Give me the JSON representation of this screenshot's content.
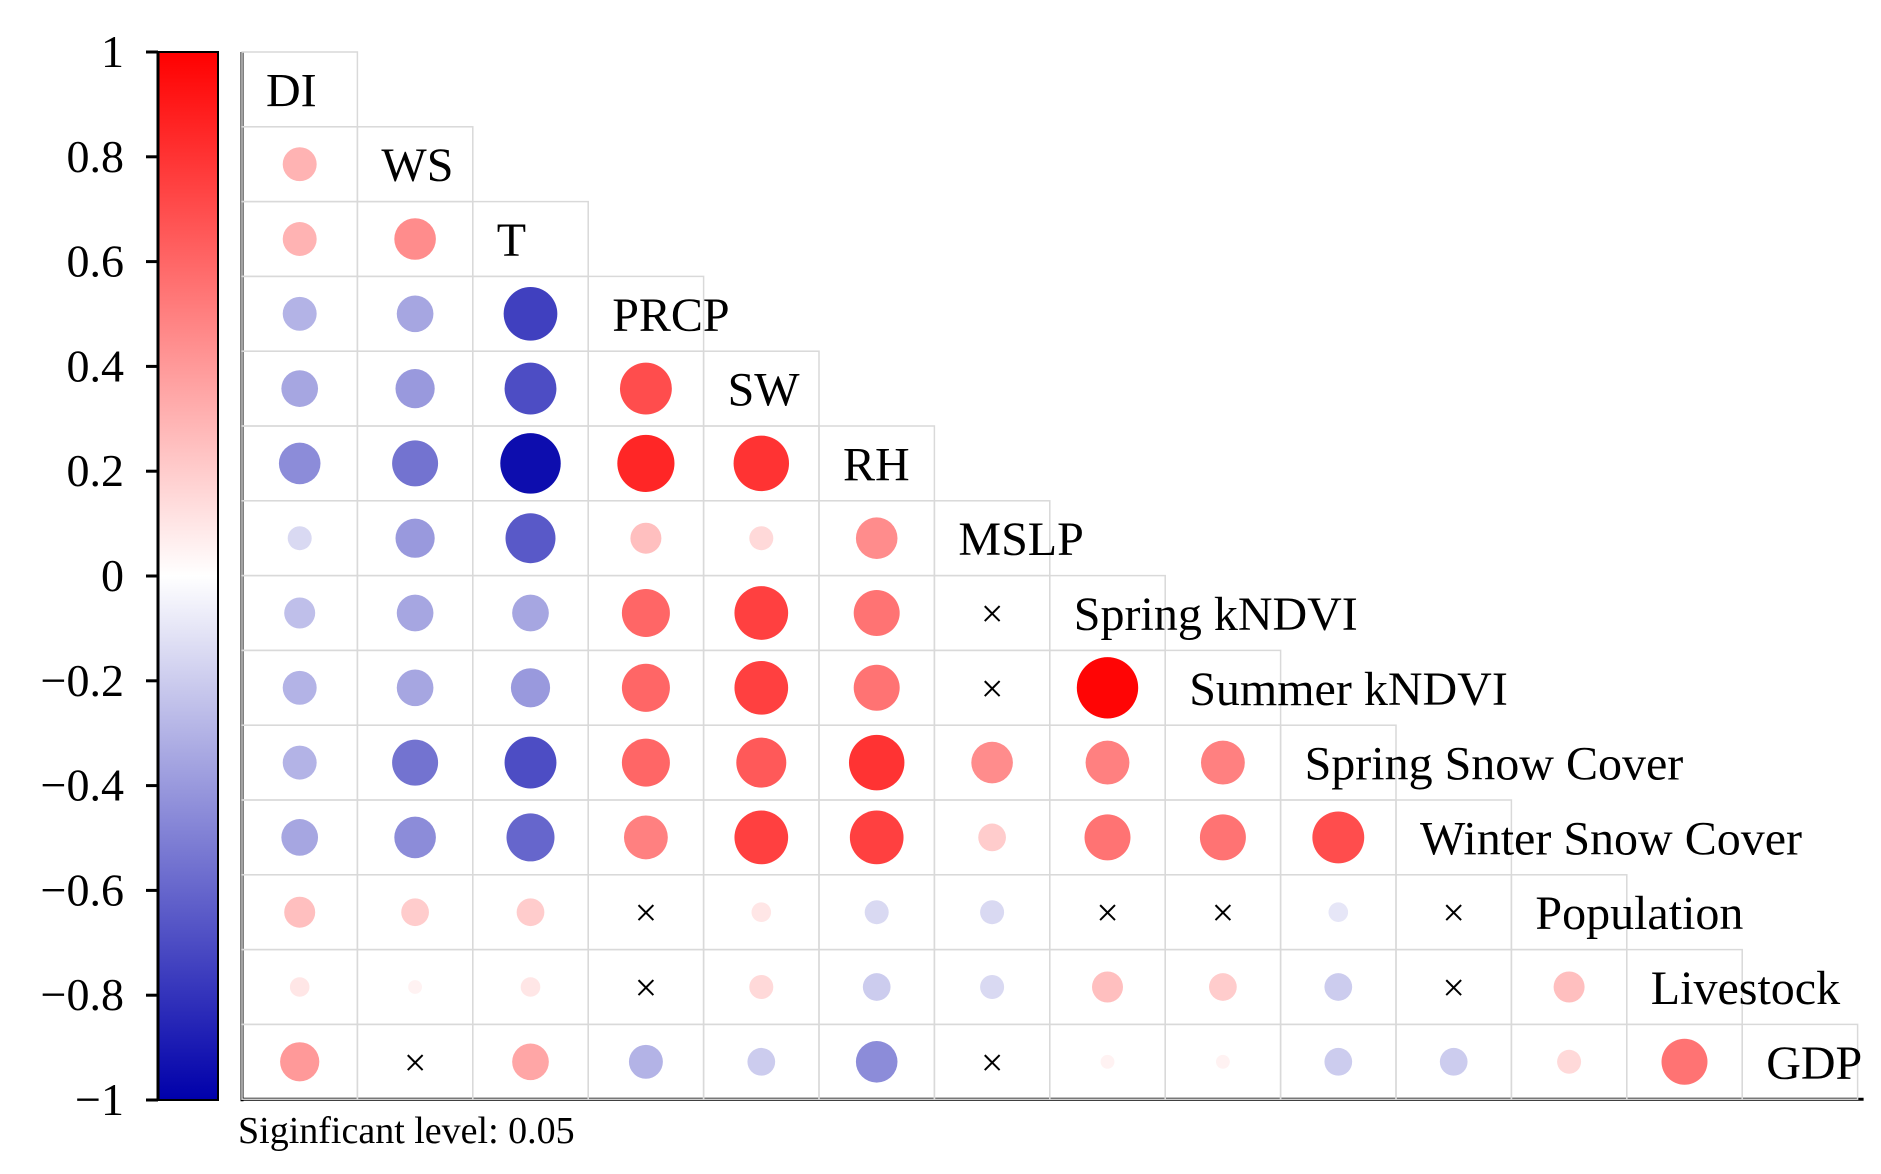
{
  "chart_data": {
    "type": "heatmap",
    "subtype": "lower-triangular correlation matrix (circles)",
    "variables": [
      "DI",
      "WS",
      "T",
      "PRCP",
      "SW",
      "RH",
      "MSLP",
      "Spring kNDVI",
      "Summer kNDVI",
      "Spring Snow Cover",
      "Winter Snow Cover",
      "Population",
      "Livestock",
      "GDP"
    ],
    "matrix": [
      [],
      [
        0.3
      ],
      [
        0.3,
        0.45
      ],
      [
        -0.3,
        -0.35,
        -0.75
      ],
      [
        -0.35,
        -0.4,
        -0.7,
        0.7
      ],
      [
        -0.45,
        -0.55,
        -0.95,
        0.85,
        0.8
      ],
      [
        -0.15,
        -0.4,
        -0.65,
        0.25,
        0.15,
        0.45
      ],
      [
        -0.25,
        -0.35,
        -0.35,
        0.6,
        0.75,
        0.55,
        null
      ],
      [
        -0.3,
        -0.35,
        -0.4,
        0.6,
        0.75,
        0.55,
        null,
        0.98
      ],
      [
        -0.3,
        -0.55,
        -0.7,
        0.6,
        0.65,
        0.8,
        0.45,
        0.5,
        0.5
      ],
      [
        -0.35,
        -0.45,
        -0.6,
        0.5,
        0.75,
        0.75,
        0.2,
        0.55,
        0.55,
        0.7
      ],
      [
        0.25,
        0.2,
        0.2,
        null,
        0.1,
        -0.15,
        -0.15,
        null,
        null,
        -0.1,
        null
      ],
      [
        0.1,
        0.05,
        0.1,
        null,
        0.15,
        -0.2,
        -0.15,
        0.25,
        0.2,
        -0.2,
        null,
        0.25
      ],
      [
        0.4,
        null,
        0.35,
        -0.3,
        -0.2,
        -0.45,
        null,
        0.05,
        0.05,
        -0.2,
        -0.2,
        0.15,
        0.55
      ]
    ],
    "colorbar": {
      "range": [
        -1,
        1
      ],
      "ticks": [
        "1",
        "0.8",
        "0.6",
        "0.4",
        "0.2",
        "0",
        "−0.2",
        "−0.4",
        "−0.6",
        "−0.8",
        "−1"
      ],
      "tick_values": [
        1,
        0.8,
        0.6,
        0.4,
        0.2,
        0,
        -0.2,
        -0.4,
        -0.6,
        -0.8,
        -1
      ],
      "colors": {
        "negative": "#0000aa",
        "neutral": "#ffffff",
        "positive": "#ff0000"
      }
    },
    "insignificant_marker": "×",
    "annotation": "Siginficant level: 0.05"
  }
}
